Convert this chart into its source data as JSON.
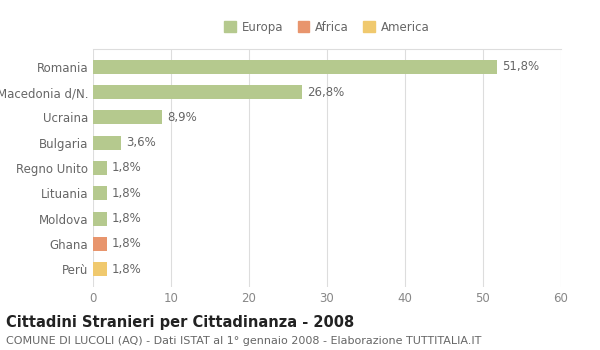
{
  "title": "Cittadini Stranieri per Cittadinanza - 2008",
  "subtitle": "COMUNE DI LUCOLI (AQ) - Dati ISTAT al 1° gennaio 2008 - Elaborazione TUTTITALIA.IT",
  "categories": [
    "Romania",
    "Macedonia d/N.",
    "Ucraina",
    "Bulgaria",
    "Regno Unito",
    "Lituania",
    "Moldova",
    "Ghana",
    "Perù"
  ],
  "values": [
    51.8,
    26.8,
    8.9,
    3.6,
    1.8,
    1.8,
    1.8,
    1.8,
    1.8
  ],
  "labels": [
    "51,8%",
    "26,8%",
    "8,9%",
    "3,6%",
    "1,8%",
    "1,8%",
    "1,8%",
    "1,8%",
    "1,8%"
  ],
  "colors": [
    "#b5c98e",
    "#b5c98e",
    "#b5c98e",
    "#b5c98e",
    "#b5c98e",
    "#b5c98e",
    "#b5c98e",
    "#e8956d",
    "#f0c96e"
  ],
  "legend": [
    {
      "label": "Europa",
      "color": "#b5c98e"
    },
    {
      "label": "Africa",
      "color": "#e8956d"
    },
    {
      "label": "America",
      "color": "#f0c96e"
    }
  ],
  "xlim": [
    0,
    60
  ],
  "xticks": [
    0,
    10,
    20,
    30,
    40,
    50,
    60
  ],
  "background_color": "#ffffff",
  "grid_color": "#dddddd",
  "bar_height": 0.55,
  "label_fontsize": 8.5,
  "title_fontsize": 10.5,
  "subtitle_fontsize": 8,
  "tick_color": "#888888",
  "text_color": "#666666"
}
